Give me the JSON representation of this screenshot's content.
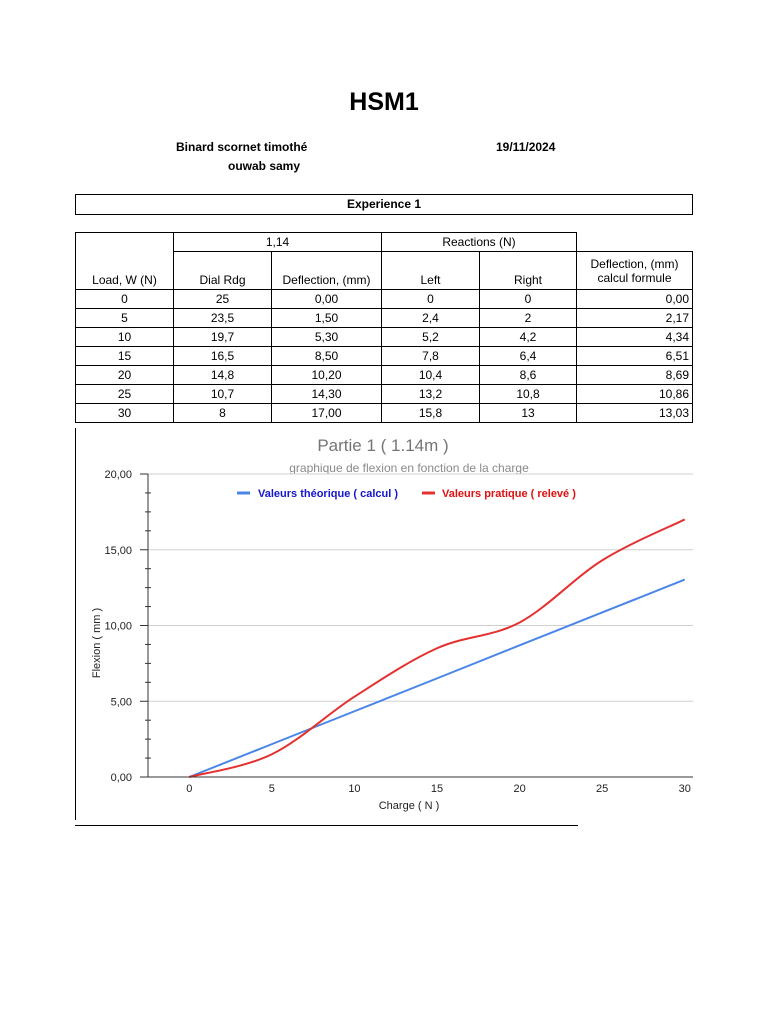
{
  "document": {
    "title": "HSM1",
    "author_line_1": "Binard scornet  timothé",
    "author_line_2": "ouwab  samy",
    "date": "19/11/2024",
    "experiment_label": "Experience 1"
  },
  "table": {
    "group_header_1": "1,14",
    "group_header_2": "Reactions (N)",
    "columns": [
      "Load, W (N)",
      "Dial Rdg",
      "Deflection, (mm)",
      "Left",
      "Right",
      "Deflection, (mm)\ncalcul formule"
    ],
    "rows": [
      [
        "0",
        "25",
        "0,00",
        "0",
        "0",
        "0,00"
      ],
      [
        "5",
        "23,5",
        "1,50",
        "2,4",
        "2",
        "2,17"
      ],
      [
        "10",
        "19,7",
        "5,30",
        "5,2",
        "4,2",
        "4,34"
      ],
      [
        "15",
        "16,5",
        "8,50",
        "7,8",
        "6,4",
        "6,51"
      ],
      [
        "20",
        "14,8",
        "10,20",
        "10,4",
        "8,6",
        "8,69"
      ],
      [
        "25",
        "10,7",
        "14,30",
        "13,2",
        "10,8",
        "10,86"
      ],
      [
        "30",
        "8",
        "17,00",
        "15,8",
        "13",
        "13,03"
      ]
    ]
  },
  "chart_data": {
    "type": "line",
    "title": "Partie 1 ( 1.14m )",
    "subtitle": "graphique de flexion en fonction de la charge",
    "xlabel": "Charge ( N )",
    "ylabel": "Flexion ( mm )",
    "x": [
      0,
      5,
      10,
      15,
      20,
      25,
      30
    ],
    "xticks": [
      "0",
      "5",
      "10",
      "15",
      "20",
      "25",
      "30"
    ],
    "xlim": [
      -2.5,
      30.5
    ],
    "ylim": [
      0,
      20
    ],
    "yticks": [
      "0,00",
      "5,00",
      "10,00",
      "15,00",
      "20,00"
    ],
    "ytick_values": [
      0,
      5,
      10,
      15,
      20
    ],
    "grid": true,
    "legend_position": "top",
    "series": [
      {
        "name": "Valeurs théorique ( calcul )",
        "color": "#4a86e8",
        "legend_color": "#1515d0",
        "values": [
          0,
          2.17,
          4.34,
          6.51,
          8.69,
          10.86,
          13.03
        ]
      },
      {
        "name": "Valeurs pratique ( relevé )",
        "color": "#e53030",
        "legend_color": "#e01010",
        "values": [
          0,
          1.5,
          5.3,
          8.5,
          10.2,
          14.3,
          17.0
        ]
      }
    ]
  }
}
